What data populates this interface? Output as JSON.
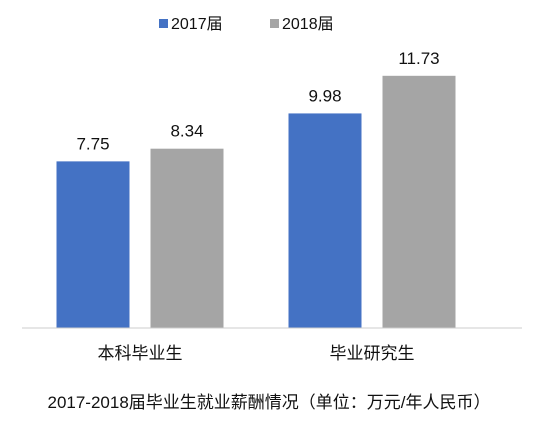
{
  "chart_data": {
    "type": "bar",
    "categories": [
      "本科毕业生",
      "毕业研究生"
    ],
    "series": [
      {
        "name": "2017届",
        "values": [
          7.75,
          9.98
        ],
        "color": "#4472C4"
      },
      {
        "name": "2018届",
        "values": [
          8.34,
          11.73
        ],
        "color": "#A5A5A5"
      }
    ],
    "ylim": [
      0,
      12
    ],
    "grid": false,
    "legend": "top-center",
    "caption": "2017-2018届毕业生就业薪酬情况（单位：万元/年人民币）"
  }
}
